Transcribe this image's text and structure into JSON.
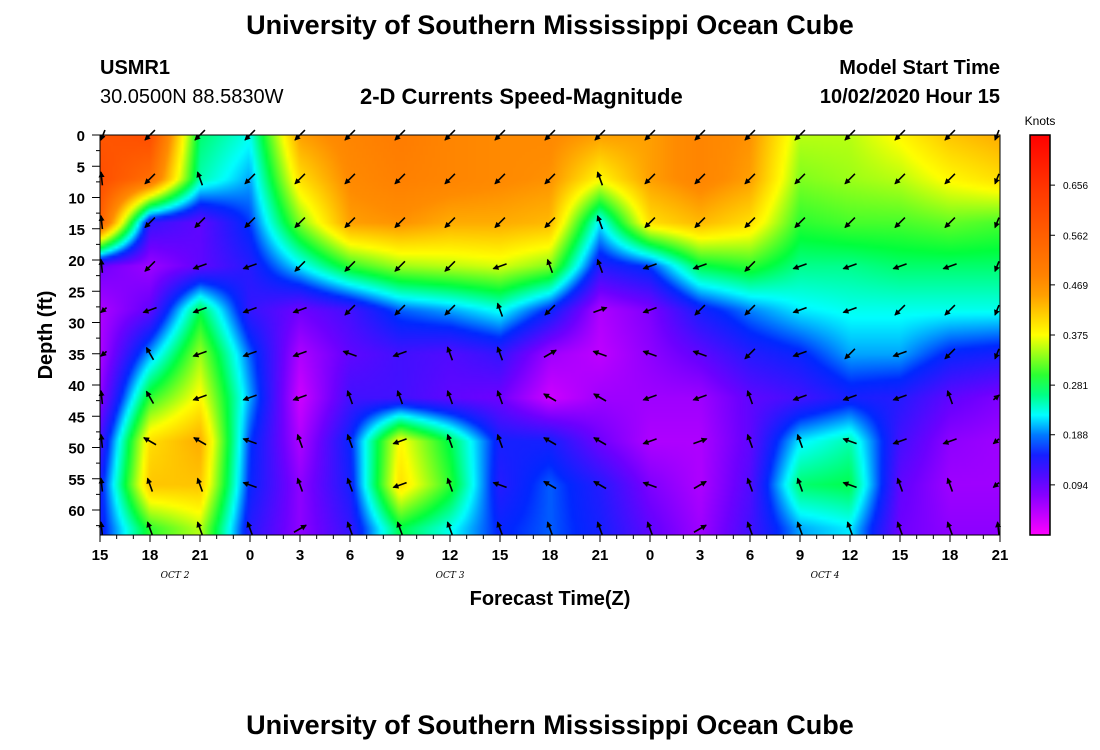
{
  "page": {
    "title_top": "University of Southern Mississippi Ocean Cube",
    "title_bottom": "University of Southern Mississippi Ocean Cube",
    "station": "USMR1",
    "coordinates": "30.0500N 88.5830W",
    "subtitle": "2-D Currents Speed-Magnitude",
    "model_start_label": "Model Start Time",
    "model_start_value": "10/02/2020 Hour 15"
  },
  "chart_data": {
    "type": "heatmap",
    "title": "2-D Currents Speed-Magnitude",
    "xlabel": "Forecast Time(Z)",
    "ylabel": "Depth (ft)",
    "x_ticks": [
      "15",
      "18",
      "21",
      "0",
      "3",
      "6",
      "9",
      "12",
      "15",
      "18",
      "21",
      "0",
      "3",
      "6",
      "9",
      "12",
      "15",
      "18",
      "21"
    ],
    "x_range_hours": [
      0,
      54
    ],
    "day_labels": [
      {
        "label": "OCT 2",
        "hour": 4.5
      },
      {
        "label": "OCT 3",
        "hour": 21
      },
      {
        "label": "OCT 4",
        "hour": 43.5
      }
    ],
    "y_ticks": [
      "0",
      "5",
      "10",
      "15",
      "20",
      "25",
      "30",
      "35",
      "40",
      "45",
      "50",
      "55",
      "60"
    ],
    "y_range_ft": [
      0,
      64
    ],
    "colorbar": {
      "unit": "Knots",
      "ticks": [
        "0.656",
        "0.562",
        "0.469",
        "0.375",
        "0.281",
        "0.188",
        "0.094"
      ],
      "range": [
        0.0,
        0.75
      ]
    },
    "sample_hours": [
      0,
      3,
      6,
      9,
      12,
      15,
      18,
      21,
      24,
      27,
      30,
      33,
      36,
      39,
      42,
      45,
      48,
      51,
      54
    ],
    "sample_depths_ft": [
      0,
      7,
      14,
      21,
      28,
      35,
      42,
      49,
      56,
      63
    ],
    "speed_knots": [
      [
        0.58,
        0.6,
        0.27,
        0.23,
        0.45,
        0.48,
        0.5,
        0.48,
        0.47,
        0.47,
        0.45,
        0.45,
        0.48,
        0.46,
        0.35,
        0.35,
        0.38,
        0.42,
        0.44
      ],
      [
        0.6,
        0.53,
        0.25,
        0.2,
        0.4,
        0.47,
        0.49,
        0.48,
        0.47,
        0.46,
        0.38,
        0.45,
        0.48,
        0.45,
        0.33,
        0.34,
        0.35,
        0.38,
        0.4
      ],
      [
        0.56,
        0.13,
        0.1,
        0.17,
        0.33,
        0.45,
        0.46,
        0.44,
        0.44,
        0.43,
        0.22,
        0.4,
        0.43,
        0.4,
        0.3,
        0.31,
        0.31,
        0.32,
        0.31
      ],
      [
        0.09,
        0.06,
        0.1,
        0.14,
        0.22,
        0.3,
        0.34,
        0.35,
        0.36,
        0.33,
        0.14,
        0.17,
        0.28,
        0.3,
        0.26,
        0.26,
        0.27,
        0.27,
        0.27
      ],
      [
        0.05,
        0.1,
        0.28,
        0.13,
        0.09,
        0.12,
        0.18,
        0.2,
        0.23,
        0.16,
        0.05,
        0.08,
        0.15,
        0.19,
        0.22,
        0.23,
        0.23,
        0.23,
        0.23
      ],
      [
        0.05,
        0.2,
        0.34,
        0.18,
        0.05,
        0.1,
        0.12,
        0.11,
        0.13,
        0.06,
        0.04,
        0.07,
        0.1,
        0.14,
        0.16,
        0.2,
        0.2,
        0.16,
        0.15
      ],
      [
        0.07,
        0.3,
        0.38,
        0.2,
        0.03,
        0.12,
        0.12,
        0.1,
        0.09,
        0.03,
        0.06,
        0.06,
        0.06,
        0.1,
        0.12,
        0.15,
        0.14,
        0.1,
        0.08
      ],
      [
        0.12,
        0.4,
        0.44,
        0.17,
        0.05,
        0.16,
        0.38,
        0.28,
        0.15,
        0.15,
        0.09,
        0.05,
        0.05,
        0.1,
        0.22,
        0.25,
        0.12,
        0.07,
        0.06
      ],
      [
        0.15,
        0.42,
        0.42,
        0.16,
        0.07,
        0.15,
        0.4,
        0.3,
        0.14,
        0.18,
        0.14,
        0.08,
        0.05,
        0.11,
        0.27,
        0.28,
        0.1,
        0.06,
        0.06
      ],
      [
        0.15,
        0.3,
        0.35,
        0.14,
        0.07,
        0.13,
        0.28,
        0.23,
        0.16,
        0.18,
        0.15,
        0.1,
        0.06,
        0.12,
        0.2,
        0.22,
        0.09,
        0.07,
        0.07
      ]
    ],
    "direction_deg": [
      [
        225,
        225,
        225,
        225,
        225,
        225,
        225,
        225,
        225,
        225,
        225,
        225,
        225,
        225,
        225,
        225,
        225,
        225,
        225
      ],
      [
        110,
        225,
        110,
        225,
        225,
        225,
        225,
        225,
        225,
        225,
        110,
        225,
        225,
        225,
        225,
        225,
        225,
        225,
        225
      ],
      [
        110,
        225,
        225,
        225,
        225,
        225,
        225,
        225,
        225,
        225,
        110,
        225,
        225,
        225,
        225,
        225,
        225,
        225,
        225
      ],
      [
        110,
        225,
        200,
        200,
        225,
        225,
        225,
        225,
        200,
        110,
        110,
        200,
        200,
        225,
        200,
        200,
        200,
        200,
        225
      ],
      [
        200,
        200,
        200,
        200,
        200,
        225,
        225,
        225,
        110,
        225,
        20,
        200,
        225,
        225,
        200,
        200,
        225,
        225,
        225
      ],
      [
        200,
        120,
        200,
        200,
        200,
        160,
        200,
        110,
        110,
        30,
        160,
        160,
        160,
        225,
        200,
        225,
        200,
        225,
        225
      ],
      [
        110,
        120,
        200,
        200,
        200,
        110,
        110,
        110,
        110,
        150,
        150,
        200,
        200,
        110,
        200,
        200,
        200,
        110,
        20
      ],
      [
        110,
        150,
        150,
        160,
        110,
        110,
        200,
        110,
        110,
        150,
        150,
        200,
        20,
        110,
        110,
        160,
        200,
        200,
        200
      ],
      [
        110,
        110,
        110,
        160,
        110,
        110,
        200,
        110,
        160,
        150,
        150,
        160,
        30,
        110,
        110,
        160,
        110,
        110,
        200
      ],
      [
        110,
        110,
        110,
        110,
        30,
        110,
        110,
        110,
        110,
        110,
        110,
        110,
        30,
        110,
        110,
        110,
        110,
        110,
        110
      ]
    ]
  }
}
